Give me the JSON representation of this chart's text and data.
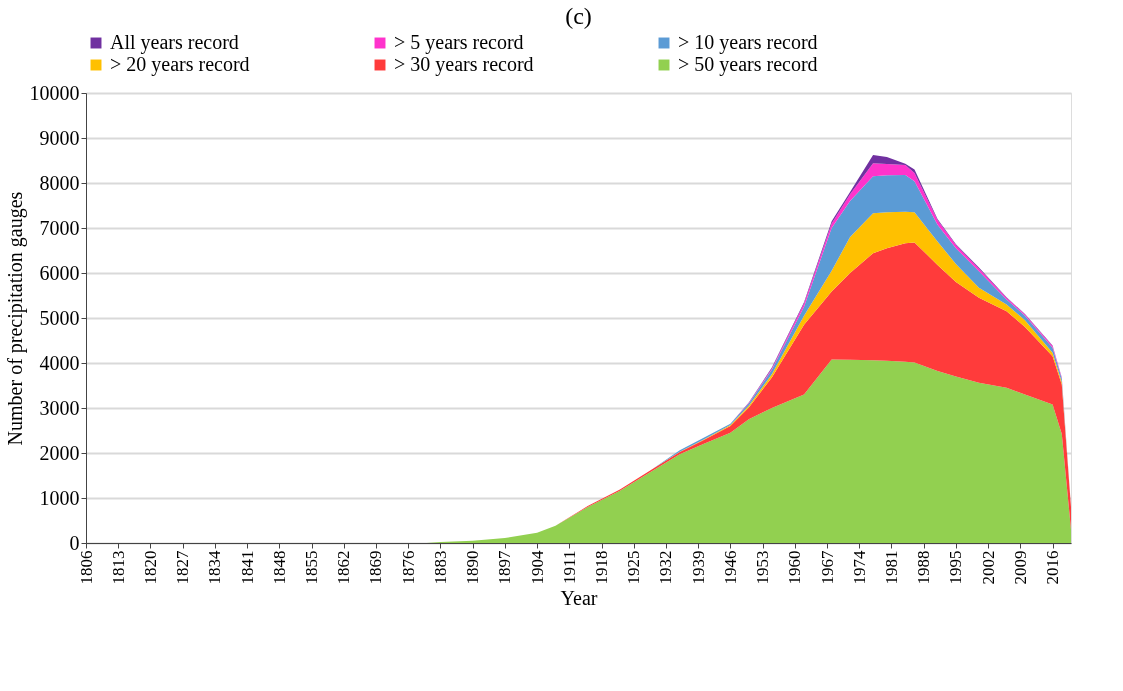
{
  "chart_data": {
    "type": "area",
    "title": "(c)",
    "xlabel": "Year",
    "ylabel": "Number of precipitation gauges",
    "stacked": true,
    "legend": "top",
    "grid": "y",
    "x": [
      1806,
      1880,
      1883,
      1890,
      1897,
      1904,
      1908,
      1915,
      1922,
      1929,
      1935,
      1940,
      1946,
      1950,
      1955,
      1962,
      1968,
      1972,
      1977,
      1980,
      1984,
      1986,
      1991,
      1995,
      2000,
      2006,
      2010,
      2016,
      2018,
      2020
    ],
    "xlim": [
      1806,
      2020
    ],
    "xticks": [
      1806,
      1813,
      1820,
      1827,
      1834,
      1841,
      1848,
      1855,
      1862,
      1869,
      1876,
      1883,
      1890,
      1897,
      1904,
      1911,
      1918,
      1925,
      1932,
      1939,
      1946,
      1953,
      1960,
      1967,
      1974,
      1981,
      1988,
      1995,
      2002,
      2009,
      2016
    ],
    "ylim": [
      0,
      10000
    ],
    "yticks": [
      0,
      1000,
      2000,
      3000,
      4000,
      5000,
      6000,
      7000,
      8000,
      9000,
      10000
    ],
    "series": [
      {
        "name": "> 50 years record",
        "color": "#92d050",
        "values": [
          0,
          0,
          20,
          50,
          110,
          230,
          385,
          800,
          1160,
          1600,
          1970,
          2195,
          2450,
          2750,
          3000,
          3300,
          4080,
          4070,
          4060,
          4050,
          4030,
          4010,
          3820,
          3700,
          3560,
          3450,
          3300,
          3080,
          2420,
          300
        ]
      },
      {
        "name": "> 30 years record",
        "color": "#ff3b3b",
        "values": [
          0,
          0,
          0,
          0,
          0,
          0,
          0,
          20,
          30,
          40,
          50,
          85,
          150,
          260,
          680,
          1550,
          1510,
          1930,
          2380,
          2500,
          2630,
          2670,
          2360,
          2100,
          1890,
          1700,
          1500,
          1070,
          1100,
          500
        ]
      },
      {
        "name": "> 20 years record",
        "color": "#ffc000",
        "values": [
          0,
          0,
          0,
          0,
          0,
          0,
          0,
          0,
          0,
          0,
          10,
          10,
          20,
          40,
          70,
          200,
          460,
          800,
          890,
          800,
          700,
          670,
          520,
          400,
          220,
          150,
          150,
          80,
          60,
          0
        ]
      },
      {
        "name": "> 10 years record",
        "color": "#5b9bd5",
        "values": [
          0,
          0,
          0,
          0,
          0,
          0,
          0,
          0,
          0,
          0,
          30,
          40,
          30,
          50,
          100,
          200,
          950,
          800,
          820,
          820,
          820,
          690,
          370,
          350,
          370,
          110,
          100,
          110,
          70,
          0
        ]
      },
      {
        "name": "> 5 years record",
        "color": "#ff33cc",
        "values": [
          0,
          0,
          0,
          0,
          0,
          0,
          0,
          0,
          0,
          0,
          0,
          0,
          0,
          10,
          30,
          70,
          100,
          150,
          290,
          250,
          220,
          180,
          110,
          70,
          60,
          40,
          30,
          40,
          20,
          0
        ]
      },
      {
        "name": "All years record",
        "color": "#7030a0",
        "values": [
          0,
          0,
          0,
          0,
          0,
          0,
          0,
          0,
          0,
          0,
          0,
          0,
          0,
          10,
          20,
          30,
          50,
          50,
          180,
          160,
          30,
          80,
          20,
          20,
          20,
          10,
          10,
          10,
          10,
          0
        ]
      }
    ]
  }
}
